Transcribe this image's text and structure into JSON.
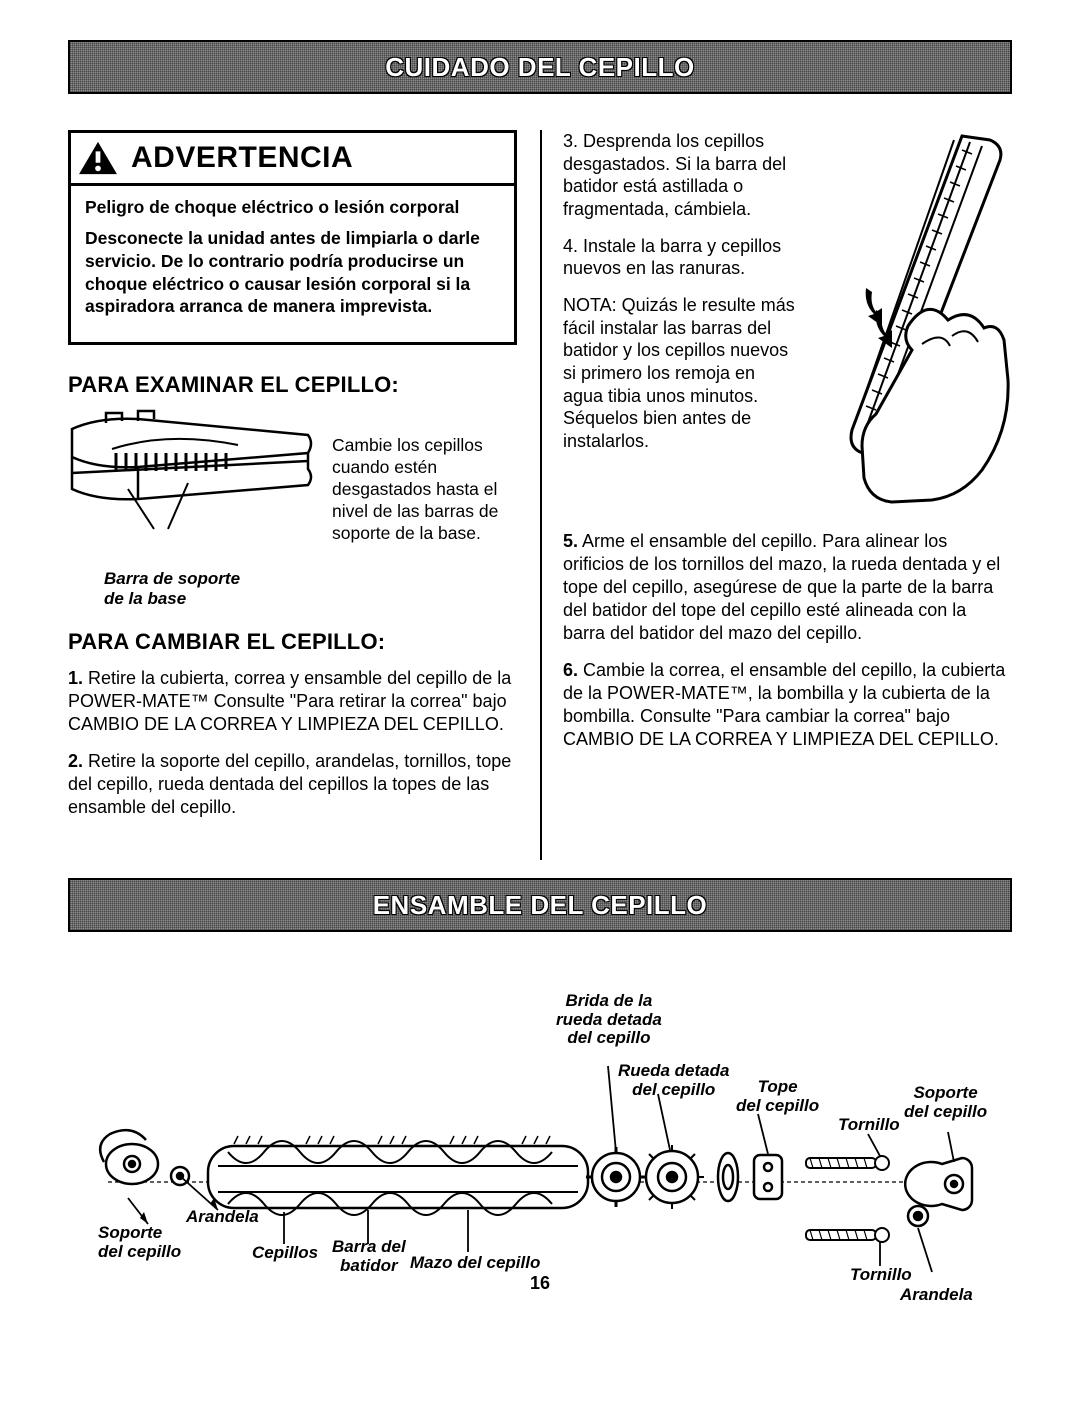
{
  "banner1": "CUIDADO DEL CEPILLO",
  "banner2": "ENSAMBLE DEL CEPILLO",
  "warning": {
    "title": "ADVERTENCIA",
    "p1": "Peligro de choque eléctrico o lesión corporal",
    "p2": "Desconecte la unidad antes de limpiarla o darle servicio. De lo contrario podría producirse un choque eléctrico o causar lesión corporal si la aspiradora arranca de manera imprevista."
  },
  "sec1": "PARA EXAMINAR EL CEPILLO:",
  "brush_caption": "Cambie los cepillos cuando estén desgastados hasta el nivel de las barras de soporte de la base.",
  "brush_label1": "Barra de soporte",
  "brush_label2": "de la base",
  "sec2": "PARA CAMBIAR EL CEPILLO:",
  "left_p1a": "1.",
  "left_p1b": " Retire la cubierta, correa y ensamble del cepillo de la POWER-MATE™ Consulte \"Para retirar la correa\" bajo CAMBIO DE LA CORREA Y LIMPIEZA DEL CEPILLO.",
  "left_p2a": "2.",
  "left_p2b": " Retire la soporte del cepillo, arandelas, tornillos, tope del cepillo, rueda dentada del cepillos la topes de las ensamble del cepillo.",
  "right_p3a": "3.",
  "right_p3b": " Desprenda los cepillos desgastados. Si la barra del batidor está astillada o fragmentada, cámbiela.",
  "right_p4a": "4.",
  "right_p4b": " Instale la barra y cepillos nuevos en las ranuras.",
  "right_notea": "NOTA:",
  "right_noteb": " Quizás le resulte más fácil instalar las barras del batidor y los cepillos nuevos si primero los remoja en agua tibia unos minutos. Séquelos bien antes de instalarlos.",
  "right_p5a": "5.",
  "right_p5b": " Arme el ensamble del cepillo. Para alinear los orificios de los tornillos del mazo, la rueda dentada y el tope del cepillo, asegúrese de que la parte de la barra del batidor del tope del cepillo esté alineada con la barra del batidor del mazo del cepillo.",
  "right_p6a": "6.",
  "right_p6b": " Cambie la correa, el ensamble del cepillo, la cubierta de la POWER-MATE™, la bombilla y la cubierta de la bombilla. Consulte \"Para cambiar la correa\" bajo CAMBIO DE LA CORREA Y LIMPIEZA DEL CEPILLO.",
  "assembly_labels": {
    "brida": "Brida de la\nrueda detada\ndel cepillo",
    "rueda": "Rueda detada\ndel cepillo",
    "tope": "Tope\ndel cepillo",
    "soporte_r": "Soporte\ndel cepillo",
    "tornillo1": "Tornillo",
    "tornillo2": "Tornillo",
    "arandela1": "Arandela",
    "arandela2": "Arandela",
    "soporte_l": "Soporte\ndel cepillo",
    "cepillos": "Cepillos",
    "barra": "Barra del\nbatidor",
    "mazo": "Mazo del cepillo"
  },
  "page_number": "16"
}
